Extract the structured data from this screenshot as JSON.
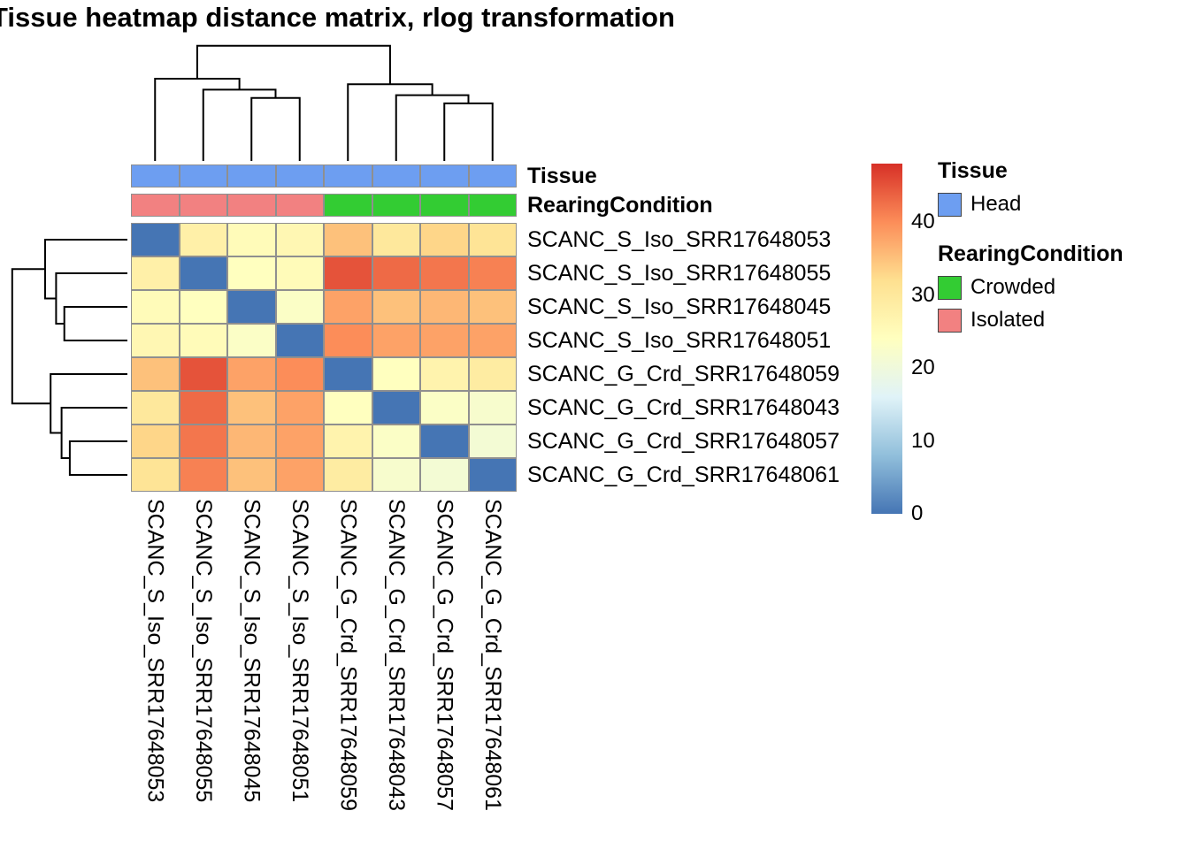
{
  "title": "Tissue heatmap distance matrix, rlog transformation",
  "annotation_rows": {
    "tissue_label": "Tissue",
    "rearing_label": "RearingCondition",
    "tissue_values": [
      "Head",
      "Head",
      "Head",
      "Head",
      "Head",
      "Head",
      "Head",
      "Head"
    ],
    "rearing_values": [
      "Isolated",
      "Isolated",
      "Isolated",
      "Isolated",
      "Crowded",
      "Crowded",
      "Crowded",
      "Crowded"
    ]
  },
  "annotation_colors": {
    "Head": "#6D9EF1",
    "Crowded": "#33CC33",
    "Isolated": "#F28181"
  },
  "legends": {
    "tissue": {
      "title": "Tissue",
      "items": [
        {
          "label": "Head",
          "color": "#6D9EF1"
        }
      ]
    },
    "rearing": {
      "title": "RearingCondition",
      "items": [
        {
          "label": "Crowded",
          "color": "#33CC33"
        },
        {
          "label": "Isolated",
          "color": "#F28181"
        }
      ]
    }
  },
  "chart_data": {
    "type": "heatmap",
    "title": "Tissue heatmap distance matrix, rlog transformation",
    "rows": [
      "SCANC_S_Iso_SRR17648053",
      "SCANC_S_Iso_SRR17648055",
      "SCANC_S_Iso_SRR17648045",
      "SCANC_S_Iso_SRR17648051",
      "SCANC_G_Crd_SRR17648059",
      "SCANC_G_Crd_SRR17648043",
      "SCANC_G_Crd_SRR17648057",
      "SCANC_G_Crd_SRR17648061"
    ],
    "cols": [
      "SCANC_S_Iso_SRR17648053",
      "SCANC_S_Iso_SRR17648055",
      "SCANC_S_Iso_SRR17648045",
      "SCANC_S_Iso_SRR17648051",
      "SCANC_G_Crd_SRR17648059",
      "SCANC_G_Crd_SRR17648043",
      "SCANC_G_Crd_SRR17648057",
      "SCANC_G_Crd_SRR17648061"
    ],
    "matrix": [
      [
        0,
        28,
        25,
        26,
        35,
        30,
        33,
        31
      ],
      [
        28,
        0,
        24,
        25,
        45,
        43,
        42,
        41
      ],
      [
        25,
        24,
        0,
        23,
        38,
        35,
        36,
        35
      ],
      [
        26,
        25,
        23,
        0,
        40,
        38,
        38,
        38
      ],
      [
        35,
        45,
        38,
        40,
        0,
        24,
        27,
        29
      ],
      [
        30,
        43,
        35,
        38,
        24,
        0,
        23,
        22
      ],
      [
        33,
        42,
        36,
        38,
        27,
        23,
        0,
        21
      ],
      [
        31,
        41,
        35,
        38,
        29,
        22,
        21,
        0
      ]
    ],
    "scale": {
      "min": 0,
      "max": 48,
      "palette": [
        "#4575B4",
        "#91BFDB",
        "#E0F3F8",
        "#FFFFBF",
        "#FEE090",
        "#FC8D59",
        "#D73027"
      ],
      "legend_ticks": [
        0,
        10,
        20,
        30,
        40
      ]
    },
    "col_dendrogram_merges": [
      [
        2,
        3,
        23
      ],
      [
        1,
        8,
        26
      ],
      [
        0,
        9,
        30
      ],
      [
        6,
        7,
        21
      ],
      [
        5,
        11,
        24
      ],
      [
        4,
        12,
        28
      ],
      [
        10,
        13,
        42
      ]
    ],
    "row_dendrogram_merges": [
      [
        2,
        3,
        23
      ],
      [
        1,
        8,
        26
      ],
      [
        0,
        9,
        30
      ],
      [
        6,
        7,
        21
      ],
      [
        5,
        11,
        24
      ],
      [
        4,
        12,
        28
      ],
      [
        10,
        13,
        42
      ]
    ]
  }
}
